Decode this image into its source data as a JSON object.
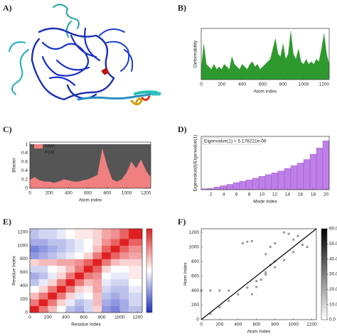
{
  "structure_panel": "A)",
  "chart_data": [
    {
      "type": "area",
      "panel": "B)",
      "xlabel": "Atom index",
      "ylabel": "Deformability",
      "xlim": [
        0,
        1250
      ],
      "ylim": [
        0,
        1
      ],
      "xticks": [
        0,
        200,
        400,
        600,
        800,
        1000,
        1200
      ],
      "series": [
        {
          "name": "Deformability",
          "color": "#2e9a2e",
          "x": [
            0,
            25,
            50,
            75,
            100,
            125,
            150,
            175,
            200,
            225,
            250,
            275,
            300,
            325,
            350,
            375,
            400,
            425,
            450,
            475,
            500,
            525,
            550,
            575,
            600,
            625,
            650,
            675,
            700,
            725,
            750,
            775,
            800,
            825,
            850,
            875,
            900,
            925,
            950,
            975,
            1000,
            1025,
            1050,
            1075,
            1100,
            1125,
            1150,
            1175,
            1200,
            1225,
            1250
          ],
          "values": [
            0.2,
            0.7,
            0.3,
            0.25,
            0.2,
            0.3,
            0.2,
            0.25,
            0.2,
            0.3,
            0.25,
            0.2,
            0.45,
            0.3,
            0.25,
            0.2,
            0.3,
            0.25,
            0.2,
            0.3,
            0.35,
            0.25,
            0.3,
            0.2,
            0.25,
            0.3,
            0.35,
            0.4,
            0.6,
            0.8,
            0.5,
            0.45,
            0.7,
            0.4,
            0.5,
            0.95,
            0.5,
            0.4,
            0.6,
            0.35,
            0.3,
            0.4,
            0.3,
            0.35,
            0.3,
            0.4,
            0.35,
            0.6,
            0.9,
            0.5,
            0.3
          ]
        }
      ]
    },
    {
      "type": "area",
      "panel": "C)",
      "xlabel": "Atom index",
      "ylabel": "Bfactor",
      "legend": "upper left",
      "xlim": [
        0,
        1250
      ],
      "ylim": [
        0,
        1.05
      ],
      "xticks": [
        0,
        200,
        400,
        600,
        800,
        1000,
        1200
      ],
      "yticks": [
        0,
        0.2,
        0.4,
        0.6,
        0.8,
        1
      ],
      "series": [
        {
          "name": "PDB",
          "color": "#555555",
          "x": [
            0,
            50,
            100,
            150,
            200,
            250,
            300,
            350,
            400,
            450,
            500,
            550,
            600,
            650,
            700,
            750,
            800,
            850,
            900,
            950,
            1000,
            1050,
            1100,
            1150,
            1200,
            1250
          ],
          "values": [
            1,
            1,
            1,
            1,
            1,
            1,
            1,
            1,
            1,
            1,
            1,
            1,
            1,
            1,
            1,
            1,
            1,
            1,
            1,
            1,
            1,
            1,
            1,
            1,
            1,
            1
          ]
        },
        {
          "name": "NMA",
          "color": "#f08080",
          "x": [
            0,
            50,
            100,
            150,
            200,
            250,
            300,
            350,
            400,
            450,
            500,
            550,
            600,
            650,
            700,
            750,
            800,
            850,
            900,
            950,
            1000,
            1050,
            1100,
            1150,
            1200,
            1250
          ],
          "values": [
            0.2,
            0.25,
            0.18,
            0.15,
            0.15,
            0.12,
            0.15,
            0.2,
            0.18,
            0.15,
            0.15,
            0.18,
            0.2,
            0.25,
            0.3,
            0.9,
            0.5,
            0.2,
            0.15,
            0.2,
            0.35,
            0.6,
            0.45,
            0.65,
            0.4,
            0.25
          ]
        }
      ]
    },
    {
      "type": "bar",
      "panel": "D)",
      "xlabel": "Mode index",
      "ylabel": "Eigenvalue(i)/Eigenvalue(1)",
      "annotation": "Eigenvalue(1) = 5.178221e-06",
      "color": "#bf7fe8",
      "xlim": [
        0.5,
        20.5
      ],
      "ylim": [
        0,
        60
      ],
      "xticks": [
        2,
        4,
        6,
        8,
        10,
        12,
        14,
        16,
        18,
        20
      ],
      "x": [
        1,
        2,
        3,
        4,
        5,
        6,
        7,
        8,
        9,
        10,
        11,
        12,
        13,
        14,
        15,
        16,
        17,
        18,
        19,
        20
      ],
      "values": [
        1,
        1.5,
        3,
        4.5,
        6,
        8,
        9.5,
        11,
        13,
        15,
        17,
        19,
        21,
        24,
        27,
        30,
        34,
        40,
        47,
        55
      ]
    },
    {
      "type": "heatmap",
      "panel": "E)",
      "xlabel": "Residue Index",
      "ylabel": "Residue Index",
      "xlim": [
        0,
        1250
      ],
      "ylim": [
        0,
        1250
      ],
      "xticks": [
        0,
        200,
        400,
        600,
        800,
        1000,
        1200
      ],
      "yticks": [
        0,
        200,
        400,
        600,
        800,
        1000,
        1200
      ],
      "bins": [
        0,
        100,
        200,
        300,
        400,
        500,
        600,
        700,
        800,
        900,
        1000,
        1100,
        1250
      ],
      "clim": [
        -1,
        1
      ],
      "matrix": [
        [
          1,
          0.6,
          0.3,
          0,
          -0.3,
          -0.4,
          -0.2,
          0.2,
          -0.5,
          -0.6,
          -0.4,
          -0.3
        ],
        [
          0.6,
          1,
          0.6,
          0.2,
          -0.1,
          -0.3,
          -0.2,
          0.3,
          -0.4,
          -0.5,
          -0.4,
          -0.2
        ],
        [
          0.3,
          0.6,
          1,
          0.6,
          0.2,
          -0.1,
          0,
          0.3,
          -0.3,
          -0.4,
          -0.3,
          -0.2
        ],
        [
          0,
          0.2,
          0.6,
          1,
          0.6,
          0.2,
          0.1,
          0.4,
          -0.2,
          -0.3,
          -0.3,
          -0.1
        ],
        [
          -0.3,
          -0.1,
          0.2,
          0.6,
          1,
          0.6,
          0.3,
          0.4,
          -0.1,
          -0.2,
          -0.2,
          0
        ],
        [
          -0.4,
          -0.3,
          -0.1,
          0.2,
          0.6,
          1,
          0.6,
          0.5,
          0,
          -0.1,
          -0.1,
          0.1
        ],
        [
          -0.2,
          -0.2,
          0,
          0.1,
          0.3,
          0.6,
          1,
          0.7,
          0.2,
          0,
          0,
          0.1
        ],
        [
          0.2,
          0.3,
          0.3,
          0.4,
          0.4,
          0.5,
          0.7,
          1,
          0.6,
          0.3,
          0.2,
          0.2
        ],
        [
          -0.5,
          -0.4,
          -0.3,
          -0.2,
          -0.1,
          0,
          0.2,
          0.6,
          1,
          0.7,
          0.5,
          0.4
        ],
        [
          -0.6,
          -0.5,
          -0.4,
          -0.3,
          -0.2,
          -0.1,
          0,
          0.3,
          0.7,
          1,
          0.7,
          0.5
        ],
        [
          -0.4,
          -0.4,
          -0.3,
          -0.3,
          -0.2,
          -0.1,
          0,
          0.2,
          0.5,
          0.7,
          1,
          0.7
        ],
        [
          -0.3,
          -0.2,
          -0.2,
          -0.1,
          0,
          0.1,
          0.1,
          0.2,
          0.4,
          0.5,
          0.7,
          1
        ]
      ]
    },
    {
      "type": "scatter",
      "panel": "F)",
      "xlabel": "Atom Index",
      "ylabel": "Atom Index",
      "xlim": [
        0,
        1250
      ],
      "ylim": [
        0,
        1250
      ],
      "xticks": [
        0,
        200,
        400,
        600,
        800,
        1000,
        1200
      ],
      "yticks": [
        0,
        200,
        400,
        600,
        800,
        1000,
        1200
      ],
      "clim": [
        0,
        60
      ],
      "cticks": [
        {
          "value": 0,
          "label": "0.0"
        },
        {
          "value": 10,
          "label": "10.0"
        },
        {
          "value": 20,
          "label": "20.0"
        },
        {
          "value": 30,
          "label": "30.0"
        },
        {
          "value": 40,
          "label": "40.0"
        },
        {
          "value": 50,
          "label": "50.0"
        },
        {
          "value": 60,
          "label": "60.0"
        }
      ],
      "color": "#999999",
      "x": [
        100,
        200,
        300,
        400,
        500,
        600,
        700,
        800,
        900,
        1000,
        1100,
        0,
        100,
        200,
        300,
        550,
        600,
        650,
        700,
        750,
        800,
        700,
        750,
        800,
        450,
        500,
        550,
        1000,
        1050,
        1150,
        900,
        950
      ],
      "y": [
        80,
        170,
        260,
        350,
        440,
        530,
        620,
        720,
        820,
        930,
        1030,
        400,
        400,
        400,
        400,
        350,
        450,
        550,
        650,
        750,
        800,
        900,
        1000,
        1050,
        1050,
        1070,
        1080,
        1100,
        1150,
        1000,
        1200,
        1180
      ],
      "diagonal": {
        "color": "#000000",
        "x": [
          0,
          1250
        ],
        "y": [
          0,
          1250
        ]
      }
    }
  ]
}
